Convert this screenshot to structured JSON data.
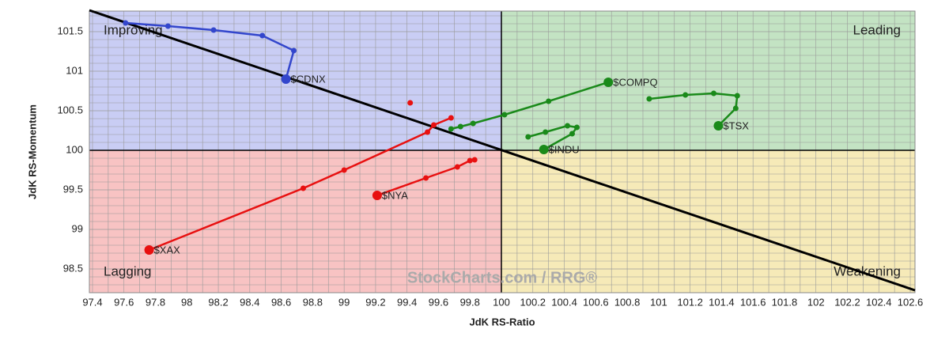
{
  "chart_data": {
    "type": "rrg",
    "x_label": "JdK RS-Ratio",
    "y_label": "JdK RS-Momentum",
    "watermark": "StockCharts.com / RRG®",
    "xlim": [
      97.38,
      102.63
    ],
    "ylim": [
      98.2,
      101.76
    ],
    "xticks": [
      97.4,
      97.6,
      97.8,
      98,
      98.2,
      98.4,
      98.6,
      98.8,
      99,
      99.2,
      99.4,
      99.6,
      99.8,
      100,
      100.2,
      100.4,
      100.6,
      100.8,
      101,
      101.2,
      101.4,
      101.6,
      101.8,
      102,
      102.2,
      102.4,
      102.6
    ],
    "yticks": [
      98.5,
      99,
      99.5,
      100,
      100.5,
      101,
      101.5
    ],
    "grid": true,
    "center": [
      100,
      100
    ],
    "quadrants": [
      {
        "label": "Improving",
        "color": "#c9cdf4",
        "text_color": "#4a55c8"
      },
      {
        "label": "Leading",
        "color": "#c3e3c3",
        "text_color": "#1c8a1c"
      },
      {
        "label": "Lagging",
        "color": "#f8c3c3",
        "text_color": "#e01818"
      },
      {
        "label": "Weakening",
        "color": "#f6eab8",
        "text_color": "#e8b800"
      }
    ],
    "diagonal": {
      "x": [
        97.38,
        102.63
      ],
      "y": [
        101.77,
        98.23
      ]
    },
    "series": [
      {
        "name": "$CDNX",
        "color": "#3346cc",
        "x": [
          97.61,
          97.88,
          98.17,
          98.48,
          98.68,
          98.63
        ],
        "y": [
          101.61,
          101.57,
          101.52,
          101.45,
          101.26,
          100.9
        ]
      },
      {
        "name": "$COMPQ",
        "color": "#1a8a1a",
        "x": [
          99.68,
          99.74,
          99.82,
          100.02,
          100.3,
          100.68
        ],
        "y": [
          100.27,
          100.3,
          100.34,
          100.45,
          100.62,
          100.86
        ]
      },
      {
        "name": "$TSX",
        "color": "#1a8a1a",
        "x": [
          100.94,
          101.17,
          101.35,
          101.5,
          101.49,
          101.38
        ],
        "y": [
          100.65,
          100.7,
          100.72,
          100.69,
          100.53,
          100.31
        ]
      },
      {
        "name": "$INDU",
        "color": "#1a8a1a",
        "x": [
          100.17,
          100.28,
          100.42,
          100.48,
          100.45,
          100.27
        ],
        "y": [
          100.17,
          100.23,
          100.31,
          100.29,
          100.21,
          100.01
        ]
      },
      {
        "name": "$XAX",
        "color": "#e81010",
        "x": [
          99.68,
          99.57,
          99.53,
          99.0,
          98.74,
          97.76
        ],
        "y": [
          100.41,
          100.32,
          100.23,
          99.75,
          99.52,
          98.74
        ]
      },
      {
        "name": "$NYA",
        "color": "#e81010",
        "x": [
          99.42,
          null,
          99.83,
          99.8,
          99.72,
          99.52,
          99.21
        ],
        "y": [
          100.6,
          null,
          99.88,
          99.87,
          99.79,
          99.65,
          99.43
        ]
      }
    ]
  }
}
